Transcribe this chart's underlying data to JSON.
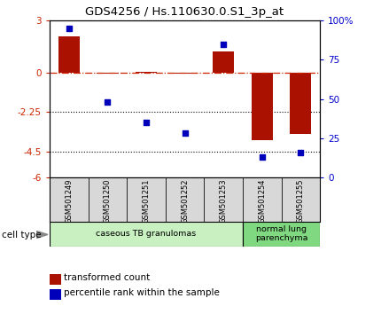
{
  "title": "GDS4256 / Hs.110630.0.S1_3p_at",
  "samples": [
    "GSM501249",
    "GSM501250",
    "GSM501251",
    "GSM501252",
    "GSM501253",
    "GSM501254",
    "GSM501255"
  ],
  "transformed_count": [
    2.1,
    -0.05,
    0.05,
    -0.05,
    1.2,
    -3.85,
    -3.5
  ],
  "percentile_rank": [
    95,
    48,
    35,
    28,
    85,
    13,
    16
  ],
  "bar_color": "#aa1100",
  "dot_color": "#0000bb",
  "ylim_left": [
    -6,
    3
  ],
  "yticks_left": [
    -6,
    -4.5,
    -2.25,
    0,
    3
  ],
  "ytick_labels_left": [
    "-6",
    "-4.5",
    "-2.25",
    "0",
    "3"
  ],
  "ylim_right": [
    0,
    100
  ],
  "yticks_right": [
    0,
    25,
    50,
    75,
    100
  ],
  "ytick_labels_right": [
    "0",
    "25",
    "50",
    "75",
    "100%"
  ],
  "hline_y": 0,
  "dotted_lines": [
    -2.25,
    -4.5
  ],
  "cell_type_label": "cell type",
  "groups": [
    {
      "label": "caseous TB granulomas",
      "start": 0,
      "end": 5,
      "color": "#c8f0c0"
    },
    {
      "label": "normal lung\nparenchyma",
      "start": 5,
      "end": 7,
      "color": "#80d880"
    }
  ],
  "legend_items": [
    {
      "color": "#aa1100",
      "label": "transformed count"
    },
    {
      "color": "#0000bb",
      "label": "percentile rank within the sample"
    }
  ],
  "background_color": "#ffffff"
}
